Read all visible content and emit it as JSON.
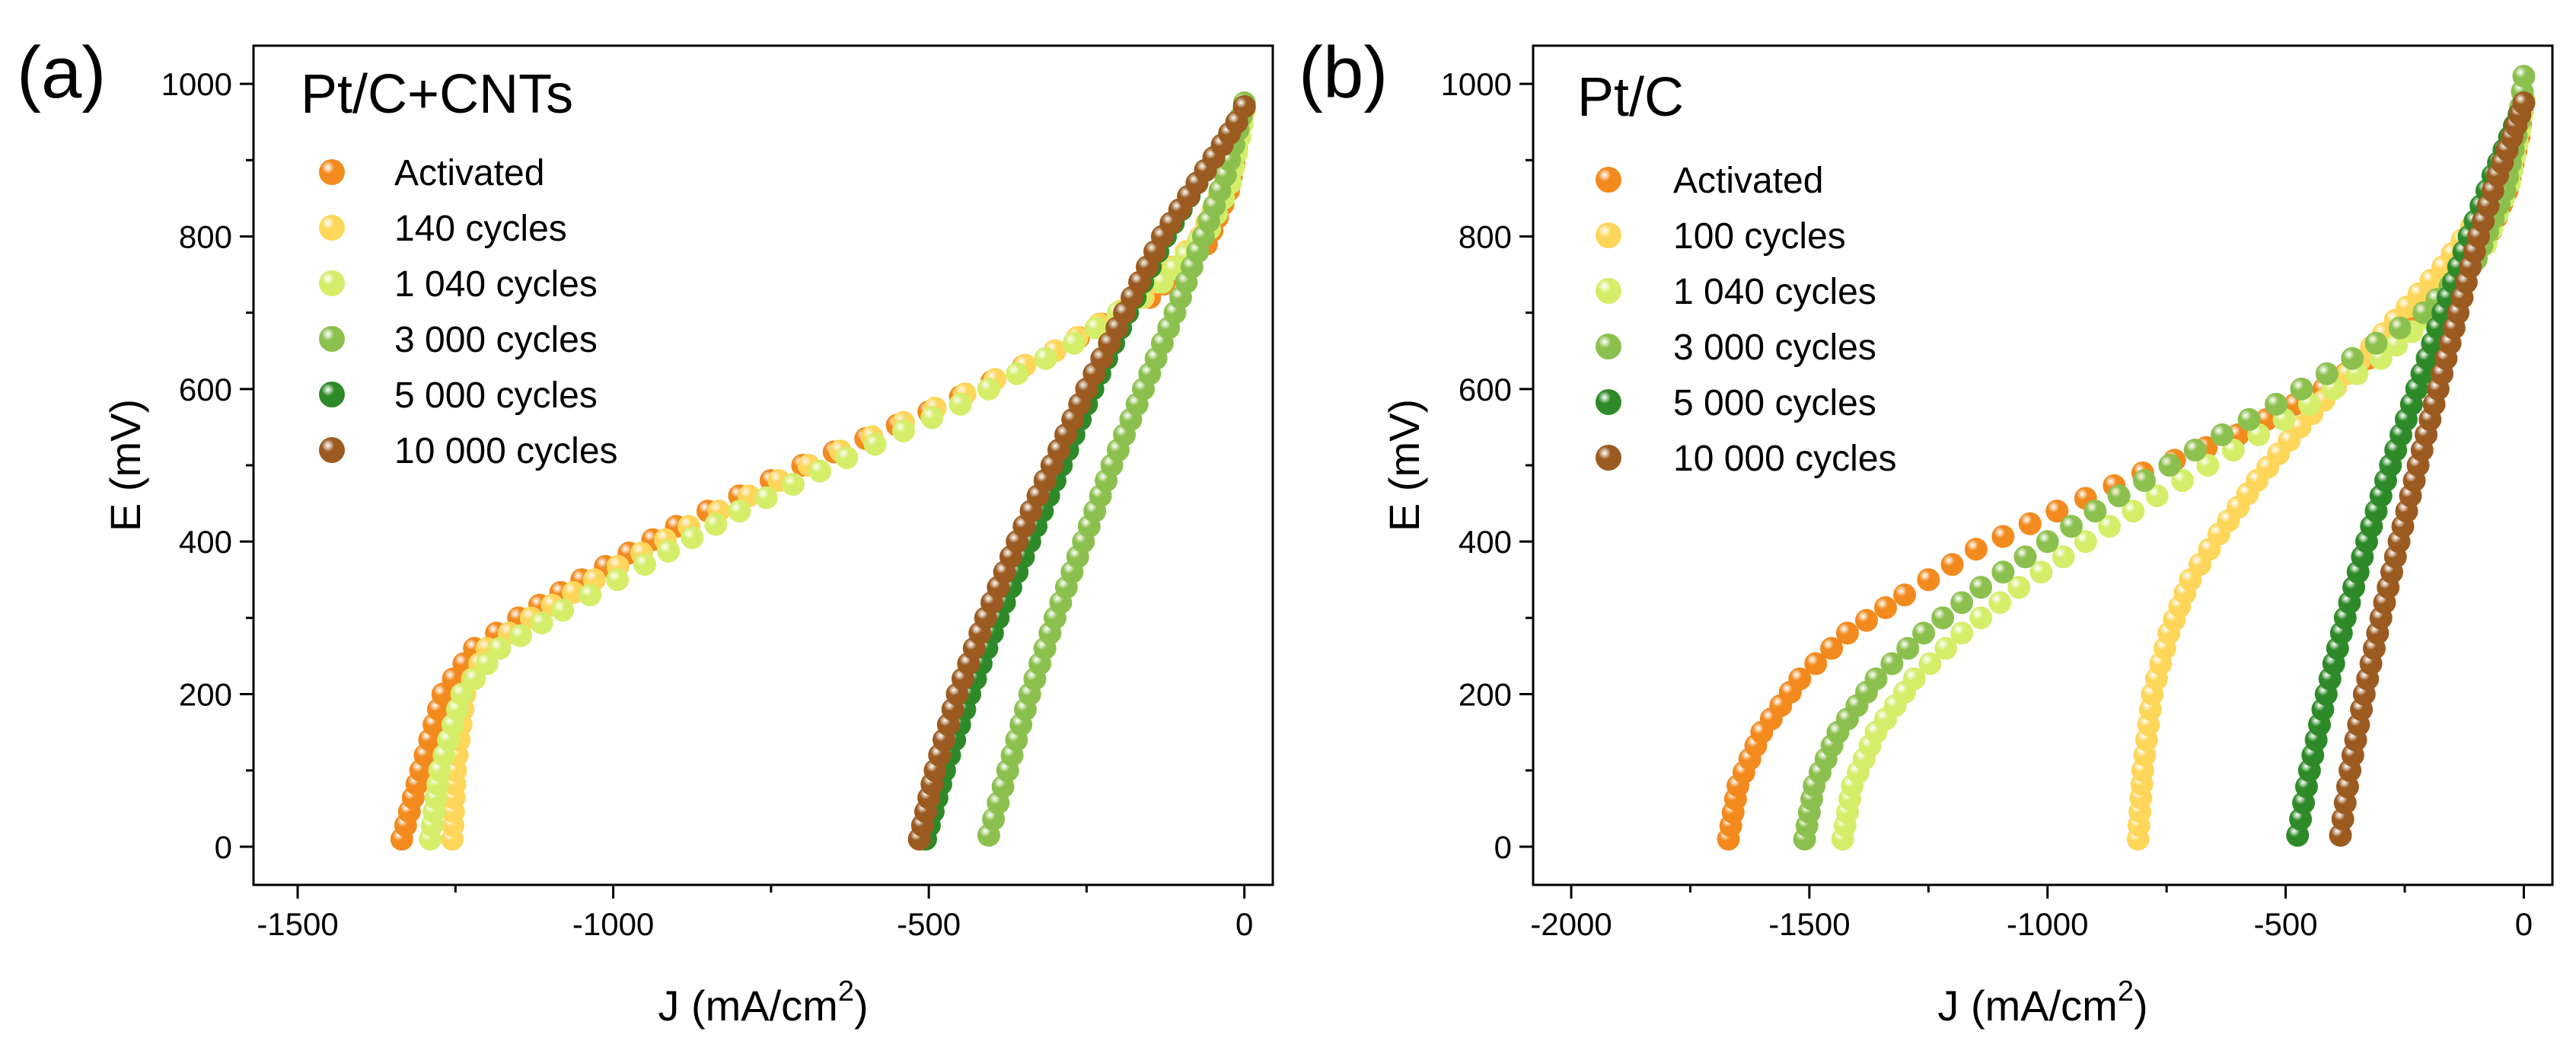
{
  "chart_data": [
    {
      "type": "scatter",
      "panel_label": "(a)",
      "title": "Pt/C+CNTs",
      "xlabel": "J (mA/cm",
      "xlabel_sup": "2",
      "xlabel_end": ")",
      "ylabel": "E (mV)",
      "xlim": [
        -1570,
        45
      ],
      "ylim": [
        -50,
        1050
      ],
      "xticks": [
        -1500,
        -1000,
        -500,
        0
      ],
      "xtick_labels": [
        "-1500",
        "-1000",
        "-500",
        "0"
      ],
      "yticks": [
        0,
        200,
        400,
        600,
        800,
        1000
      ],
      "ytick_labels": [
        "0",
        "200",
        "400",
        "600",
        "800",
        "1000"
      ],
      "legend_position": "top-left",
      "series": [
        {
          "name": "Activated",
          "color": "#f28a1e",
          "x": [
            -1335,
            -1305,
            -1270,
            -1220,
            -1150,
            -1050,
            -900,
            -700,
            -500,
            -300,
            -150,
            -60,
            -25,
            -8,
            0
          ],
          "y": [
            10,
            100,
            200,
            260,
            300,
            350,
            420,
            500,
            570,
            650,
            720,
            790,
            860,
            930,
            970
          ]
        },
        {
          "name": "140 cycles",
          "color": "#fdd65a",
          "x": [
            -1255,
            -1250,
            -1235,
            -1200,
            -1130,
            -1030,
            -880,
            -690,
            -490,
            -300,
            -160,
            -70,
            -30,
            -10,
            0
          ],
          "y": [
            10,
            100,
            200,
            260,
            300,
            350,
            420,
            500,
            575,
            650,
            720,
            800,
            870,
            935,
            970
          ]
        },
        {
          "name": "1 040 cycles",
          "color": "#d4ee6a",
          "x": [
            -1290,
            -1275,
            -1240,
            -1180,
            -1080,
            -950,
            -800,
            -630,
            -450,
            -270,
            -130,
            -55,
            -22,
            -7,
            0
          ],
          "y": [
            10,
            100,
            200,
            260,
            310,
            370,
            440,
            510,
            580,
            660,
            740,
            810,
            870,
            930,
            965
          ]
        },
        {
          "name": "3 000 cycles",
          "color": "#8cc04e",
          "x": [
            -405,
            -375,
            -340,
            -300,
            -255,
            -210,
            -160,
            -110,
            -65,
            -30,
            -10,
            0
          ],
          "y": [
            15,
            100,
            200,
            300,
            400,
            500,
            600,
            700,
            800,
            880,
            940,
            975
          ]
        },
        {
          "name": "5 000 cycles",
          "color": "#2e8a28",
          "x": [
            -505,
            -475,
            -435,
            -390,
            -340,
            -290,
            -240,
            -185,
            -125,
            -75,
            -35,
            -12,
            0
          ],
          "y": [
            10,
            100,
            200,
            300,
            400,
            500,
            600,
            700,
            800,
            870,
            920,
            950,
            970
          ]
        },
        {
          "name": "10 000 cycles",
          "color": "#9a5a20",
          "x": [
            -515,
            -490,
            -455,
            -410,
            -360,
            -305,
            -250,
            -190,
            -130,
            -75,
            -35,
            -12,
            0
          ],
          "y": [
            10,
            100,
            200,
            300,
            400,
            500,
            600,
            700,
            800,
            870,
            920,
            950,
            970
          ]
        }
      ]
    },
    {
      "type": "scatter",
      "panel_label": "(b)",
      "title": "Pt/C",
      "xlabel": "J (mA/cm",
      "xlabel_sup": "2",
      "xlabel_end": ")",
      "ylabel": "E (mV)",
      "xlim": [
        -2080,
        60
      ],
      "ylim": [
        -50,
        1050
      ],
      "xticks": [
        -2000,
        -1500,
        -1000,
        -500,
        0
      ],
      "xtick_labels": [
        "-2000",
        "-1500",
        "-1000",
        "-500",
        "0"
      ],
      "yticks": [
        0,
        200,
        400,
        600,
        800,
        1000
      ],
      "ytick_labels": [
        "0",
        "200",
        "400",
        "600",
        "800",
        "1000"
      ],
      "legend_position": "top-left",
      "series": [
        {
          "name": "Activated",
          "color": "#f28a1e",
          "x": [
            -1670,
            -1650,
            -1600,
            -1520,
            -1420,
            -1300,
            -1150,
            -980,
            -800,
            -600,
            -420,
            -280,
            -160,
            -80,
            -35,
            -10,
            0
          ],
          "y": [
            10,
            80,
            150,
            220,
            280,
            330,
            390,
            440,
            490,
            540,
            600,
            660,
            720,
            790,
            860,
            930,
            980
          ]
        },
        {
          "name": "100 cycles",
          "color": "#fdd65a",
          "x": [
            -810,
            -800,
            -780,
            -745,
            -700,
            -640,
            -560,
            -470,
            -370,
            -270,
            -170,
            -90,
            -40,
            -12,
            0
          ],
          "y": [
            10,
            100,
            200,
            280,
            350,
            410,
            480,
            550,
            620,
            690,
            760,
            830,
            890,
            940,
            975
          ]
        },
        {
          "name": "1 040 cycles",
          "color": "#d4ee6a",
          "x": [
            -1430,
            -1410,
            -1360,
            -1280,
            -1180,
            -1060,
            -920,
            -770,
            -610,
            -450,
            -300,
            -170,
            -80,
            -30,
            -8,
            0
          ],
          "y": [
            10,
            80,
            150,
            220,
            280,
            340,
            400,
            460,
            520,
            580,
            640,
            710,
            790,
            870,
            940,
            980
          ]
        },
        {
          "name": "3 000 cycles",
          "color": "#8cc04e",
          "x": [
            -1510,
            -1490,
            -1440,
            -1360,
            -1260,
            -1140,
            -1000,
            -850,
            -690,
            -520,
            -360,
            -210,
            -100,
            -40,
            -10,
            0
          ],
          "y": [
            10,
            80,
            150,
            220,
            280,
            340,
            400,
            460,
            520,
            580,
            640,
            700,
            770,
            860,
            950,
            1010
          ]
        },
        {
          "name": "5 000 cycles",
          "color": "#2e8a28",
          "x": [
            -475,
            -450,
            -415,
            -375,
            -330,
            -280,
            -225,
            -170,
            -115,
            -65,
            -30,
            -10,
            0
          ],
          "y": [
            15,
            100,
            200,
            300,
            400,
            500,
            600,
            700,
            800,
            880,
            930,
            960,
            975
          ]
        },
        {
          "name": "10 000 cycles",
          "color": "#9a5a20",
          "x": [
            -385,
            -365,
            -335,
            -300,
            -262,
            -222,
            -180,
            -138,
            -95,
            -55,
            -25,
            -8,
            0
          ],
          "y": [
            15,
            100,
            200,
            300,
            400,
            500,
            600,
            700,
            800,
            880,
            930,
            960,
            975
          ]
        }
      ]
    }
  ]
}
